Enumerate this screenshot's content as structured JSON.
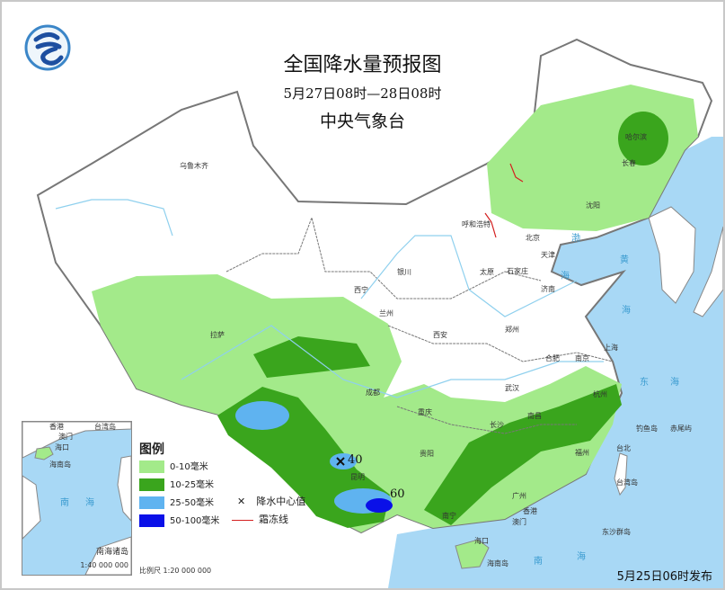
{
  "header": {
    "title": "全国降水量预报图",
    "period": "5月27日08时—28日08时",
    "agency": "中央气象台",
    "logo": "cma-logo"
  },
  "legend": {
    "title": "图例",
    "items": [
      {
        "label": "0-10毫米",
        "color": "#a3ea8a"
      },
      {
        "label": "10-25毫米",
        "color": "#3aa51d"
      },
      {
        "label": "25-50毫米",
        "color": "#5fb3f0"
      },
      {
        "label": "50-100毫米",
        "color": "#0a10e8"
      }
    ],
    "symbols": [
      {
        "icon": "x-mark-icon",
        "glyph": "✕",
        "label": "降水中心值"
      },
      {
        "icon": "frost-line-icon",
        "label": "霜冻线",
        "color": "#d42020"
      }
    ],
    "scale": "比例尺   1:20 000 000"
  },
  "inset": {
    "label": "南海诸岛",
    "scale": "1:40 000 000",
    "places": [
      "香港",
      "台湾岛",
      "澳门",
      "海口",
      "海南岛",
      "南",
      "海"
    ]
  },
  "precip_centers": [
    {
      "value": "40"
    },
    {
      "value": "60"
    }
  ],
  "cities": [
    "乌鲁木齐",
    "哈尔滨",
    "长春",
    "沈阳",
    "呼和浩特",
    "北京",
    "天津",
    "银川",
    "太原",
    "石家庄",
    "济南",
    "西宁",
    "兰州",
    "西安",
    "郑州",
    "合肥",
    "南京",
    "上海",
    "拉萨",
    "成都",
    "武汉",
    "杭州",
    "重庆",
    "长沙",
    "南昌",
    "贵阳",
    "福州",
    "台北",
    "台湾岛",
    "昆明",
    "南宁",
    "广州",
    "香港",
    "澳门",
    "海口",
    "海南岛",
    "钓鱼岛",
    "赤尾屿",
    "东沙群岛"
  ],
  "seas": [
    "渤",
    "海",
    "黄",
    "海",
    "东",
    "海",
    "南",
    "海"
  ],
  "issued": "5月25日06时发布",
  "colors": {
    "sea": "#a8d8f5",
    "border": "#777777",
    "river": "#8fd0ee"
  }
}
